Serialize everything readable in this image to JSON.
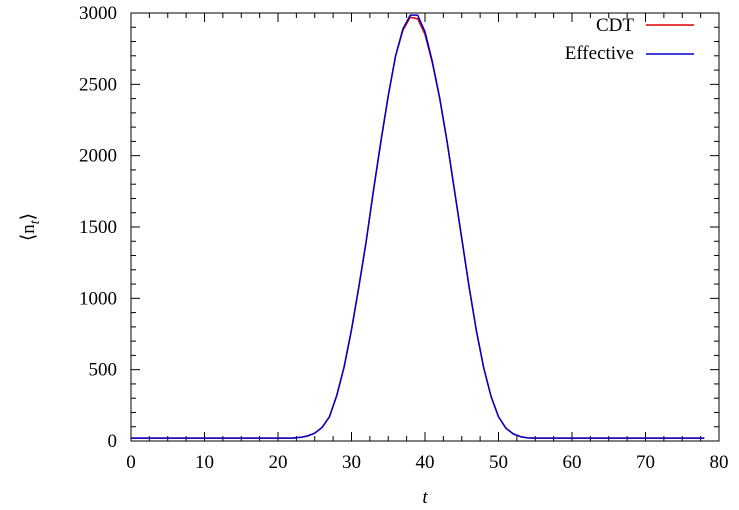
{
  "chart_data": {
    "type": "line",
    "title": "",
    "xlabel": "t",
    "ylabel_main": "⟨n",
    "ylabel_sub": "t",
    "ylabel_close": "⟩",
    "xlim": [
      0,
      80
    ],
    "ylim": [
      0,
      3000
    ],
    "x_ticks": [
      0,
      10,
      20,
      30,
      40,
      50,
      60,
      70,
      80
    ],
    "y_ticks": [
      0,
      500,
      1000,
      1500,
      2000,
      2500,
      3000
    ],
    "x_tick_labels": [
      "0",
      "10",
      "20",
      "30",
      "40",
      "50",
      "60",
      "70",
      "80"
    ],
    "y_tick_labels": [
      "0",
      "500",
      "1000",
      "1500",
      "2000",
      "2500",
      "3000"
    ],
    "grid": false,
    "legend_position": "top-right",
    "x": [
      0,
      1,
      2,
      3,
      4,
      5,
      6,
      7,
      8,
      9,
      10,
      11,
      12,
      13,
      14,
      15,
      16,
      17,
      18,
      19,
      20,
      21,
      22,
      23,
      24,
      25,
      26,
      27,
      28,
      29,
      30,
      31,
      32,
      33,
      34,
      35,
      36,
      37,
      38,
      39,
      40,
      41,
      42,
      43,
      44,
      45,
      46,
      47,
      48,
      49,
      50,
      51,
      52,
      53,
      54,
      55,
      56,
      57,
      58,
      59,
      60,
      61,
      62,
      63,
      64,
      65,
      66,
      67,
      68,
      69,
      70,
      71,
      72,
      73,
      74,
      75,
      76,
      77,
      78
    ],
    "series": [
      {
        "name": "CDT",
        "color": "#dd0000",
        "values": [
          20,
          20,
          20,
          20,
          20,
          20,
          20,
          20,
          20,
          20,
          20,
          20,
          20,
          20,
          20,
          20,
          20,
          20,
          20,
          20,
          20,
          20,
          20,
          25,
          35,
          55,
          95,
          170,
          320,
          520,
          780,
          1080,
          1400,
          1760,
          2100,
          2420,
          2700,
          2880,
          2970,
          2960,
          2850,
          2650,
          2400,
          2100,
          1760,
          1420,
          1080,
          770,
          510,
          310,
          170,
          90,
          50,
          30,
          22,
          20,
          20,
          20,
          20,
          20,
          20,
          20,
          20,
          20,
          20,
          20,
          20,
          20,
          20,
          20,
          20,
          20,
          20,
          20,
          20,
          20,
          20,
          20,
          20
        ]
      },
      {
        "name": "Effective",
        "color": "#0000cc",
        "values": [
          20,
          20,
          20,
          20,
          20,
          20,
          20,
          20,
          20,
          20,
          20,
          20,
          20,
          20,
          20,
          20,
          20,
          20,
          20,
          20,
          20,
          20,
          20,
          25,
          35,
          55,
          95,
          170,
          320,
          520,
          780,
          1080,
          1400,
          1760,
          2100,
          2420,
          2700,
          2890,
          2985,
          2985,
          2870,
          2660,
          2405,
          2100,
          1760,
          1420,
          1080,
          770,
          510,
          310,
          170,
          90,
          50,
          30,
          22,
          20,
          20,
          20,
          20,
          20,
          20,
          20,
          20,
          20,
          20,
          20,
          20,
          20,
          20,
          20,
          20,
          20,
          20,
          20,
          20,
          20,
          20,
          20,
          20
        ]
      }
    ]
  }
}
